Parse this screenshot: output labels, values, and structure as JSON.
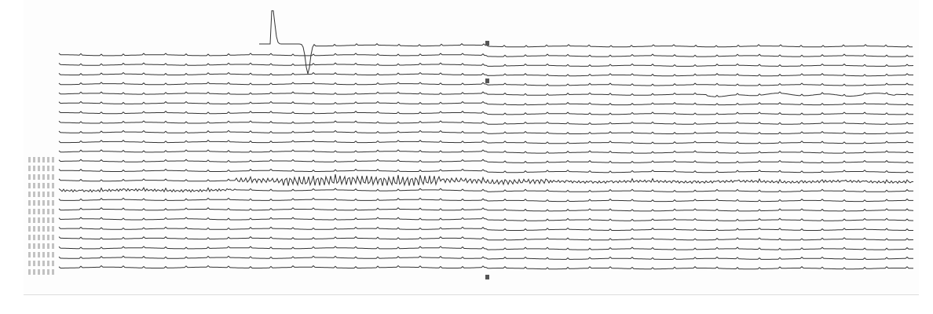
{
  "colors": {
    "paper": "#fdfdfd",
    "trace": "#333333",
    "background": "#ffffff"
  },
  "record": {
    "type": "seismogram",
    "annotation_block_legible": false
  }
}
